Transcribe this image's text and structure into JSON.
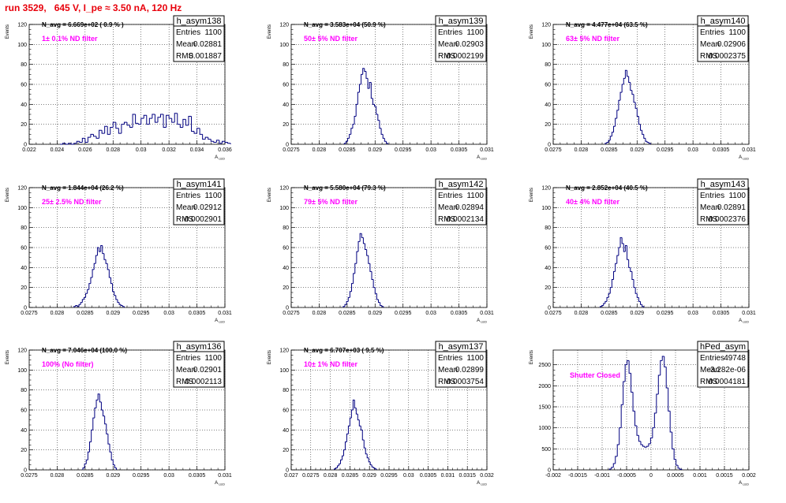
{
  "title": "run 3529,   645 V, I_pe ≈ 3.50 nA, 120 Hz",
  "chart_data": [
    {
      "type": "bar",
      "hist_name": "h_asym138",
      "entries": "1100",
      "mean": "0.02881",
      "rms": "0.001887",
      "navg_text": "N_avg = 6.669e+02 ( 0.9 % )",
      "filter_text": "1± 0.1% ND filter",
      "ylabel": "Events",
      "xlabel": "A_LED",
      "xlim": [
        0.022,
        0.036
      ],
      "ylim": [
        0,
        120
      ],
      "xticks": [
        "0.022",
        "0.024",
        "0.026",
        "0.028",
        "0.03",
        "0.032",
        "0.034",
        "0.036"
      ],
      "yticks": [
        "0",
        "20",
        "40",
        "60",
        "80",
        "100",
        "120"
      ],
      "bins": {
        "start": 0.0242,
        "width": 0.0002,
        "values": [
          0,
          1,
          0,
          1,
          0,
          1,
          3,
          2,
          6,
          2,
          7,
          10,
          8,
          6,
          14,
          11,
          18,
          10,
          17,
          22,
          16,
          11,
          20,
          22,
          19,
          17,
          30,
          21,
          20,
          26,
          29,
          20,
          26,
          30,
          22,
          27,
          30,
          17,
          29,
          26,
          22,
          31,
          20,
          17,
          25,
          19,
          28,
          13,
          11,
          16,
          10,
          5,
          7,
          5,
          3,
          2,
          4,
          1,
          3,
          2,
          1
        ]
      }
    },
    {
      "type": "bar",
      "hist_name": "h_asym139",
      "entries": "1100",
      "mean": "0.02903",
      "rms": "0.0002199",
      "navg_text": "N_avg = 3.583e+04 (50.9 %)",
      "filter_text": "50± 5% ND filter",
      "ylabel": "Events",
      "xlabel": "A_LED",
      "xlim": [
        0.0275,
        0.031
      ],
      "ylim": [
        0,
        120
      ],
      "xticks": [
        "0.0275",
        "0.028",
        "0.0285",
        "0.029",
        "0.0295",
        "0.03",
        "0.0305",
        "0.031"
      ],
      "yticks": [
        "0",
        "20",
        "40",
        "60",
        "80",
        "100",
        "120"
      ],
      "bins": {
        "start": 0.02845,
        "width": 3e-05,
        "values": [
          1,
          3,
          6,
          10,
          16,
          20,
          28,
          40,
          52,
          60,
          70,
          76,
          73,
          66,
          56,
          62,
          46,
          40,
          38,
          30,
          24,
          16,
          10,
          6,
          3,
          1
        ]
      }
    },
    {
      "type": "bar",
      "hist_name": "h_asym140",
      "entries": "1100",
      "mean": "0.02906",
      "rms": "0.0002375",
      "navg_text": "N_avg = 4.477e+04 (63.5 %)",
      "filter_text": "63± 5% ND filter",
      "ylabel": "Events",
      "xlabel": "A_LED",
      "xlim": [
        0.0275,
        0.031
      ],
      "ylim": [
        0,
        120
      ],
      "xticks": [
        "0.0275",
        "0.028",
        "0.0285",
        "0.029",
        "0.0295",
        "0.03",
        "0.0305",
        "0.031"
      ],
      "yticks": [
        "0",
        "20",
        "40",
        "60",
        "80",
        "100",
        "120"
      ],
      "bins": {
        "start": 0.02843,
        "width": 3e-05,
        "values": [
          1,
          2,
          4,
          8,
          12,
          18,
          26,
          34,
          44,
          52,
          60,
          66,
          74,
          68,
          62,
          54,
          50,
          42,
          36,
          28,
          20,
          14,
          10,
          6,
          3,
          2,
          1
        ]
      }
    },
    {
      "type": "bar",
      "hist_name": "h_asym141",
      "entries": "1100",
      "mean": "0.02912",
      "rms": "0.0002901",
      "navg_text": "N_avg = 1.844e+04 (26.2 %)",
      "filter_text": "25± 2.5% ND filter",
      "ylabel": "Events",
      "xlabel": "A_LED",
      "xlim": [
        0.0275,
        0.031
      ],
      "ylim": [
        0,
        120
      ],
      "xticks": [
        "0.0275",
        "0.028",
        "0.0285",
        "0.029",
        "0.0295",
        "0.03",
        "0.0305",
        "0.031"
      ],
      "yticks": [
        "0",
        "20",
        "40",
        "60",
        "80",
        "100",
        "120"
      ],
      "bins": {
        "start": 0.0283,
        "width": 3e-05,
        "values": [
          1,
          2,
          1,
          3,
          5,
          8,
          10,
          14,
          18,
          24,
          30,
          38,
          44,
          52,
          60,
          56,
          62,
          54,
          48,
          44,
          38,
          30,
          24,
          16,
          12,
          8,
          5,
          3,
          2,
          1
        ]
      }
    },
    {
      "type": "bar",
      "hist_name": "h_asym142",
      "entries": "1100",
      "mean": "0.02894",
      "rms": "0.0002134",
      "navg_text": "N_avg = 5.580e+04 (79.3 %)",
      "filter_text": "79± 5% ND filter",
      "ylabel": "Events",
      "xlabel": "A_LED",
      "xlim": [
        0.0275,
        0.031
      ],
      "ylim": [
        0,
        120
      ],
      "xticks": [
        "0.0275",
        "0.028",
        "0.0285",
        "0.029",
        "0.0295",
        "0.03",
        "0.0305",
        "0.031"
      ],
      "yticks": [
        "0",
        "20",
        "40",
        "60",
        "80",
        "100",
        "120"
      ],
      "bins": {
        "start": 0.02843,
        "width": 3e-05,
        "values": [
          1,
          3,
          6,
          10,
          16,
          24,
          34,
          44,
          56,
          66,
          74,
          70,
          64,
          58,
          52,
          44,
          36,
          28,
          20,
          14,
          8,
          5,
          2,
          1
        ]
      }
    },
    {
      "type": "bar",
      "hist_name": "h_asym143",
      "entries": "1100",
      "mean": "0.02891",
      "rms": "0.0002376",
      "navg_text": "N_avg = 2.852e+04 (40.5 %)",
      "filter_text": "40± 4% ND filter",
      "ylabel": "Events",
      "xlabel": "A_LED",
      "xlim": [
        0.0275,
        0.031
      ],
      "ylim": [
        0,
        120
      ],
      "xticks": [
        "0.0275",
        "0.028",
        "0.0285",
        "0.029",
        "0.0295",
        "0.03",
        "0.0305",
        "0.031"
      ],
      "yticks": [
        "0",
        "20",
        "40",
        "60",
        "80",
        "100",
        "120"
      ],
      "bins": {
        "start": 0.02834,
        "width": 3e-05,
        "values": [
          1,
          2,
          4,
          6,
          10,
          14,
          20,
          28,
          36,
          44,
          52,
          60,
          70,
          64,
          56,
          62,
          48,
          40,
          36,
          28,
          20,
          14,
          10,
          6,
          3,
          1
        ]
      }
    },
    {
      "type": "bar",
      "hist_name": "h_asym136",
      "entries": "1100",
      "mean": "0.02901",
      "rms": "0.0002113",
      "navg_text": "N_avg = 7.046e+04 (100.0 %)",
      "filter_text": "100% (No filter)",
      "ylabel": "Events",
      "xlabel": "A_LED",
      "xlim": [
        0.0275,
        0.031
      ],
      "ylim": [
        0,
        120
      ],
      "xticks": [
        "0.0275",
        "0.028",
        "0.0285",
        "0.029",
        "0.0295",
        "0.03",
        "0.0305",
        "0.031"
      ],
      "yticks": [
        "0",
        "20",
        "40",
        "60",
        "80",
        "100",
        "120"
      ],
      "bins": {
        "start": 0.02846,
        "width": 3e-05,
        "values": [
          2,
          6,
          10,
          18,
          28,
          40,
          52,
          62,
          70,
          76,
          68,
          60,
          54,
          46,
          36,
          26,
          18,
          10,
          5,
          2
        ]
      }
    },
    {
      "type": "bar",
      "hist_name": "h_asym137",
      "entries": "1100",
      "mean": "0.02899",
      "rms": "0.0003754",
      "navg_text": "N_avg = 6.707e+03 ( 9.5 %)",
      "filter_text": "10± 1% ND filter",
      "ylabel": "Events",
      "xlabel": "A_LED",
      "xlim": [
        0.027,
        0.032
      ],
      "ylim": [
        0,
        120
      ],
      "xticks": [
        "0.027",
        "0.0275",
        "0.028",
        "0.0285",
        "0.029",
        "0.0295",
        "0.03",
        "0.0305",
        "0.031",
        "0.0315",
        "0.032"
      ],
      "yticks": [
        "0",
        "20",
        "40",
        "60",
        "80",
        "100",
        "120"
      ],
      "bins": {
        "start": 0.0281,
        "width": 4e-05,
        "values": [
          1,
          2,
          4,
          6,
          10,
          14,
          20,
          28,
          36,
          44,
          52,
          60,
          70,
          62,
          56,
          50,
          44,
          40,
          30,
          22,
          16,
          12,
          8,
          5,
          3,
          2,
          1
        ]
      }
    },
    {
      "type": "bar",
      "hist_name": "hPed_asym",
      "entries": "49748",
      "mean": "-3.282e-06",
      "rms": "0.0004181",
      "navg_text": "",
      "filter_text": "Shutter Closed",
      "ylabel": "Events",
      "xlabel": "A_LED",
      "xlim": [
        -0.002,
        0.002
      ],
      "ylim": [
        0,
        2850
      ],
      "xticks": [
        "-0.002",
        "-0.0015",
        "-0.001",
        "-0.0005",
        "0",
        "0.0005",
        "0.001",
        "0.0015",
        "0.002"
      ],
      "yticks": [
        "0",
        "500",
        "1000",
        "1500",
        "2000",
        "2500"
      ],
      "bins": {
        "start": -0.00085,
        "width": 4e-05,
        "values": [
          20,
          60,
          150,
          320,
          600,
          1000,
          1550,
          2100,
          2500,
          2600,
          2300,
          1850,
          1400,
          1050,
          820,
          680,
          600,
          560,
          540,
          560,
          620,
          760,
          1000,
          1350,
          1800,
          2250,
          2600,
          2700,
          2450,
          1950,
          1400,
          900,
          500,
          250,
          110,
          40,
          15
        ]
      }
    }
  ]
}
